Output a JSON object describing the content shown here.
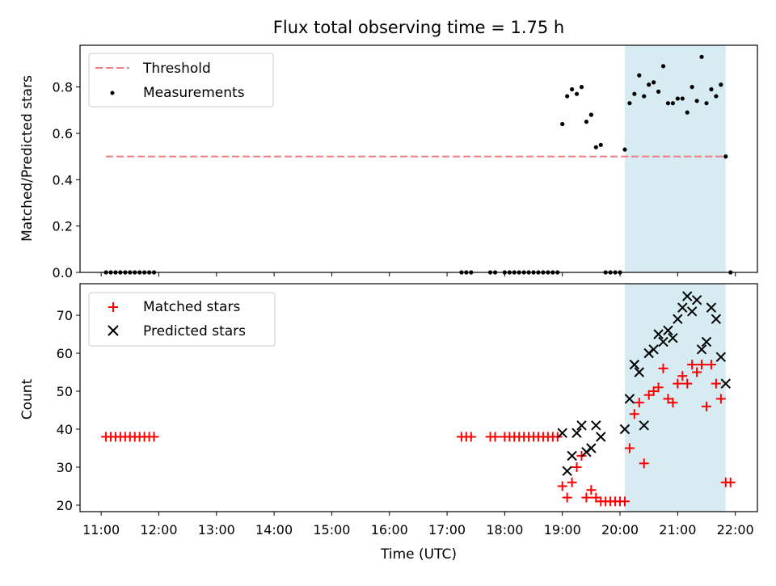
{
  "chart_data": [
    {
      "type": "scatter",
      "title": "Flux total observing time = 1.75 h",
      "xlabel": "",
      "ylabel": "Matched/Predicted stars",
      "xlim": [
        "10:38",
        "22:23"
      ],
      "ylim": [
        0,
        0.98
      ],
      "yticks": [
        "0.0",
        "0.2",
        "0.4",
        "0.6",
        "0.8"
      ],
      "ytick_values": [
        0,
        0.2,
        0.4,
        0.6,
        0.8
      ],
      "grid": false,
      "legend_position": "upper left",
      "highlight_span": {
        "start": "20:05",
        "end": "21:50",
        "color": "#ADD8E6"
      },
      "threshold": {
        "name": "Threshold",
        "value": 0.5,
        "x_start": "11:05",
        "x_end": "21:50",
        "color": "#F08080",
        "style": "dashed"
      },
      "series": [
        {
          "name": "Measurements",
          "marker": "dot",
          "color": "#000000",
          "points": [
            {
              "x": "11:05",
              "y": 0
            },
            {
              "x": "11:10",
              "y": 0
            },
            {
              "x": "11:15",
              "y": 0
            },
            {
              "x": "11:20",
              "y": 0
            },
            {
              "x": "11:25",
              "y": 0
            },
            {
              "x": "11:30",
              "y": 0
            },
            {
              "x": "11:35",
              "y": 0
            },
            {
              "x": "11:40",
              "y": 0
            },
            {
              "x": "11:45",
              "y": 0
            },
            {
              "x": "11:50",
              "y": 0
            },
            {
              "x": "11:55",
              "y": 0
            },
            {
              "x": "17:15",
              "y": 0
            },
            {
              "x": "17:20",
              "y": 0
            },
            {
              "x": "17:25",
              "y": 0
            },
            {
              "x": "17:45",
              "y": 0
            },
            {
              "x": "17:50",
              "y": 0
            },
            {
              "x": "18:00",
              "y": 0
            },
            {
              "x": "18:05",
              "y": 0
            },
            {
              "x": "18:10",
              "y": 0
            },
            {
              "x": "18:15",
              "y": 0
            },
            {
              "x": "18:20",
              "y": 0
            },
            {
              "x": "18:25",
              "y": 0
            },
            {
              "x": "18:30",
              "y": 0
            },
            {
              "x": "18:35",
              "y": 0
            },
            {
              "x": "18:40",
              "y": 0
            },
            {
              "x": "18:45",
              "y": 0
            },
            {
              "x": "18:50",
              "y": 0
            },
            {
              "x": "18:55",
              "y": 0
            },
            {
              "x": "19:00",
              "y": 0.64
            },
            {
              "x": "19:05",
              "y": 0.76
            },
            {
              "x": "19:10",
              "y": 0.79
            },
            {
              "x": "19:15",
              "y": 0.77
            },
            {
              "x": "19:20",
              "y": 0.8
            },
            {
              "x": "19:25",
              "y": 0.65
            },
            {
              "x": "19:30",
              "y": 0.68
            },
            {
              "x": "19:35",
              "y": 0.54
            },
            {
              "x": "19:40",
              "y": 0.55
            },
            {
              "x": "19:45",
              "y": 0
            },
            {
              "x": "19:50",
              "y": 0
            },
            {
              "x": "19:55",
              "y": 0
            },
            {
              "x": "20:00",
              "y": 0
            },
            {
              "x": "20:05",
              "y": 0.53
            },
            {
              "x": "20:10",
              "y": 0.73
            },
            {
              "x": "20:15",
              "y": 0.77
            },
            {
              "x": "20:20",
              "y": 0.85
            },
            {
              "x": "20:25",
              "y": 0.76
            },
            {
              "x": "20:30",
              "y": 0.81
            },
            {
              "x": "20:35",
              "y": 0.82
            },
            {
              "x": "20:40",
              "y": 0.78
            },
            {
              "x": "20:45",
              "y": 0.89
            },
            {
              "x": "20:50",
              "y": 0.73
            },
            {
              "x": "20:55",
              "y": 0.73
            },
            {
              "x": "21:00",
              "y": 0.75
            },
            {
              "x": "21:05",
              "y": 0.75
            },
            {
              "x": "21:10",
              "y": 0.69
            },
            {
              "x": "21:15",
              "y": 0.8
            },
            {
              "x": "21:20",
              "y": 0.74
            },
            {
              "x": "21:25",
              "y": 0.93
            },
            {
              "x": "21:30",
              "y": 0.73
            },
            {
              "x": "21:35",
              "y": 0.79
            },
            {
              "x": "21:40",
              "y": 0.76
            },
            {
              "x": "21:45",
              "y": 0.81
            },
            {
              "x": "21:50",
              "y": 0.5
            },
            {
              "x": "21:55",
              "y": 0
            }
          ]
        }
      ]
    },
    {
      "type": "scatter",
      "xlabel": "Time (UTC)",
      "ylabel": "Count",
      "xlim": [
        "10:38",
        "22:23"
      ],
      "ylim": [
        18.3,
        78.3
      ],
      "yticks": [
        "20",
        "30",
        "40",
        "50",
        "60",
        "70"
      ],
      "ytick_values": [
        20,
        30,
        40,
        50,
        60,
        70
      ],
      "xticks": [
        "11:00",
        "12:00",
        "13:00",
        "14:00",
        "15:00",
        "16:00",
        "17:00",
        "18:00",
        "19:00",
        "20:00",
        "21:00",
        "22:00"
      ],
      "grid": false,
      "legend_position": "upper left",
      "highlight_span": {
        "start": "20:05",
        "end": "21:50",
        "color": "#ADD8E6"
      },
      "series": [
        {
          "name": "Matched stars",
          "marker": "plus",
          "color": "#FF0000",
          "points": [
            {
              "x": "11:05",
              "y": 38
            },
            {
              "x": "11:10",
              "y": 38
            },
            {
              "x": "11:15",
              "y": 38
            },
            {
              "x": "11:20",
              "y": 38
            },
            {
              "x": "11:25",
              "y": 38
            },
            {
              "x": "11:30",
              "y": 38
            },
            {
              "x": "11:35",
              "y": 38
            },
            {
              "x": "11:40",
              "y": 38
            },
            {
              "x": "11:45",
              "y": 38
            },
            {
              "x": "11:50",
              "y": 38
            },
            {
              "x": "11:55",
              "y": 38
            },
            {
              "x": "17:15",
              "y": 38
            },
            {
              "x": "17:20",
              "y": 38
            },
            {
              "x": "17:25",
              "y": 38
            },
            {
              "x": "17:45",
              "y": 38
            },
            {
              "x": "17:50",
              "y": 38
            },
            {
              "x": "18:00",
              "y": 38
            },
            {
              "x": "18:05",
              "y": 38
            },
            {
              "x": "18:10",
              "y": 38
            },
            {
              "x": "18:15",
              "y": 38
            },
            {
              "x": "18:20",
              "y": 38
            },
            {
              "x": "18:25",
              "y": 38
            },
            {
              "x": "18:30",
              "y": 38
            },
            {
              "x": "18:35",
              "y": 38
            },
            {
              "x": "18:40",
              "y": 38
            },
            {
              "x": "18:45",
              "y": 38
            },
            {
              "x": "18:50",
              "y": 38
            },
            {
              "x": "18:55",
              "y": 38
            },
            {
              "x": "19:00",
              "y": 25
            },
            {
              "x": "19:05",
              "y": 22
            },
            {
              "x": "19:10",
              "y": 26
            },
            {
              "x": "19:15",
              "y": 30
            },
            {
              "x": "19:20",
              "y": 33
            },
            {
              "x": "19:25",
              "y": 22
            },
            {
              "x": "19:30",
              "y": 24
            },
            {
              "x": "19:35",
              "y": 22
            },
            {
              "x": "19:40",
              "y": 21
            },
            {
              "x": "19:45",
              "y": 21
            },
            {
              "x": "19:50",
              "y": 21
            },
            {
              "x": "19:55",
              "y": 21
            },
            {
              "x": "20:00",
              "y": 21
            },
            {
              "x": "20:05",
              "y": 21
            },
            {
              "x": "20:10",
              "y": 35
            },
            {
              "x": "20:15",
              "y": 44
            },
            {
              "x": "20:20",
              "y": 47
            },
            {
              "x": "20:25",
              "y": 31
            },
            {
              "x": "20:30",
              "y": 49
            },
            {
              "x": "20:35",
              "y": 50
            },
            {
              "x": "20:40",
              "y": 51
            },
            {
              "x": "20:45",
              "y": 56
            },
            {
              "x": "20:50",
              "y": 48
            },
            {
              "x": "20:55",
              "y": 47
            },
            {
              "x": "21:00",
              "y": 52
            },
            {
              "x": "21:05",
              "y": 54
            },
            {
              "x": "21:10",
              "y": 52
            },
            {
              "x": "21:15",
              "y": 57
            },
            {
              "x": "21:20",
              "y": 55
            },
            {
              "x": "21:25",
              "y": 57
            },
            {
              "x": "21:30",
              "y": 46
            },
            {
              "x": "21:35",
              "y": 57
            },
            {
              "x": "21:40",
              "y": 52
            },
            {
              "x": "21:45",
              "y": 48
            },
            {
              "x": "21:50",
              "y": 26
            },
            {
              "x": "21:55",
              "y": 26
            }
          ]
        },
        {
          "name": "Predicted stars",
          "marker": "x",
          "color": "#000000",
          "points": [
            {
              "x": "19:00",
              "y": 39
            },
            {
              "x": "19:05",
              "y": 29
            },
            {
              "x": "19:10",
              "y": 33
            },
            {
              "x": "19:15",
              "y": 39
            },
            {
              "x": "19:20",
              "y": 41
            },
            {
              "x": "19:25",
              "y": 34
            },
            {
              "x": "19:30",
              "y": 35
            },
            {
              "x": "19:35",
              "y": 41
            },
            {
              "x": "19:40",
              "y": 38
            },
            {
              "x": "20:05",
              "y": 40
            },
            {
              "x": "20:10",
              "y": 48
            },
            {
              "x": "20:15",
              "y": 57
            },
            {
              "x": "20:20",
              "y": 55
            },
            {
              "x": "20:25",
              "y": 41
            },
            {
              "x": "20:30",
              "y": 60
            },
            {
              "x": "20:35",
              "y": 61
            },
            {
              "x": "20:40",
              "y": 65
            },
            {
              "x": "20:45",
              "y": 63
            },
            {
              "x": "20:50",
              "y": 66
            },
            {
              "x": "20:55",
              "y": 64
            },
            {
              "x": "21:00",
              "y": 69
            },
            {
              "x": "21:05",
              "y": 72
            },
            {
              "x": "21:10",
              "y": 75
            },
            {
              "x": "21:15",
              "y": 71
            },
            {
              "x": "21:20",
              "y": 74
            },
            {
              "x": "21:25",
              "y": 61
            },
            {
              "x": "21:30",
              "y": 63
            },
            {
              "x": "21:35",
              "y": 72
            },
            {
              "x": "21:40",
              "y": 69
            },
            {
              "x": "21:45",
              "y": 59
            },
            {
              "x": "21:50",
              "y": 52
            }
          ]
        }
      ]
    }
  ]
}
